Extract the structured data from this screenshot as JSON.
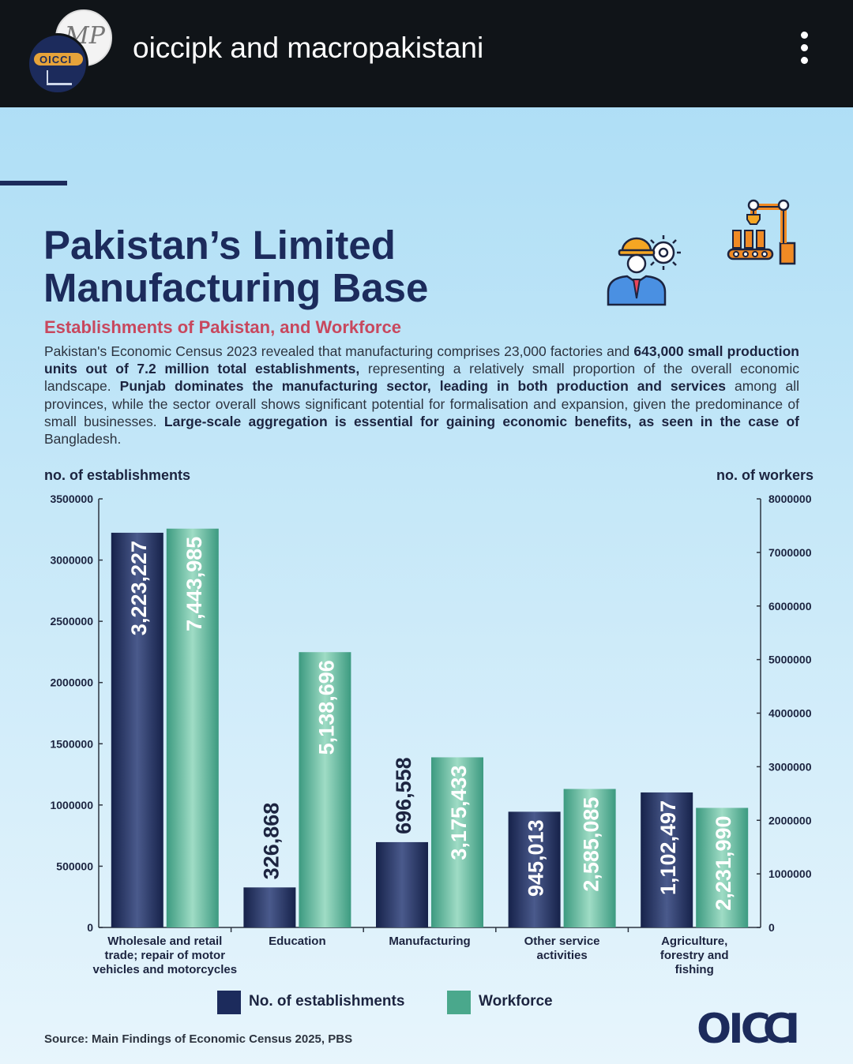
{
  "header": {
    "account_name": "oiccipk and macropakistani",
    "avatar_front_text": "OICCI",
    "avatar_back_text": "MP"
  },
  "post": {
    "title_line1": "Pakistan’s Limited",
    "title_line2": "Manufacturing Base",
    "subtitle": "Establishments of Pakistan, and Workforce",
    "body": [
      {
        "t": "Pakistan's Economic Census 2023 revealed that manufacturing comprises 23,000 factories and ",
        "b": false
      },
      {
        "t": "643,000 small production units out of 7.2 million total establishments,",
        "b": true
      },
      {
        "t": " representing a relatively small proportion of the overall economic landscape. ",
        "b": false
      },
      {
        "t": "Punjab dominates the manufacturing sector, leading in both production and services",
        "b": true
      },
      {
        "t": " among all provinces, while the sector overall shows significant potential for formalisation and expansion, given the predominance of small businesses. ",
        "b": false
      },
      {
        "t": "Large-scale aggregation is essential for gaining economic benefits, as seen in the case of",
        "b": true
      },
      {
        "t": " Bangladesh.",
        "b": false
      }
    ],
    "source": "Source: Main Findings of Economic Census 2025, PBS",
    "brand": "OICCI",
    "icons": [
      "worker-gear-icon",
      "robot-arm-icon"
    ]
  },
  "chart_data": {
    "type": "bar",
    "ylabel": "no. of establishments",
    "y2label": "no. of workers",
    "ylim": [
      0,
      3500000
    ],
    "y2lim": [
      0,
      8000000
    ],
    "yticks": [
      "0",
      "500000",
      "1000000",
      "1500000",
      "2000000",
      "2500000",
      "3000000",
      "3500000"
    ],
    "y2ticks": [
      "0",
      "1000000",
      "2000000",
      "3000000",
      "4000000",
      "5000000",
      "6000000",
      "7000000",
      "8000000"
    ],
    "categories": [
      [
        "Wholesale and retail",
        "trade; repair of motor",
        "vehicles and motorcycles"
      ],
      [
        "Education"
      ],
      [
        "Manufacturing"
      ],
      [
        "Other service",
        "activities"
      ],
      [
        "Agriculture,",
        "forestry and",
        "fishing"
      ]
    ],
    "series": [
      {
        "name": "No. of establishments",
        "axis": "left",
        "color": "#1c2b5c",
        "values": [
          3223227,
          326868,
          696558,
          945013,
          1102497
        ],
        "labels": [
          "3,223,227",
          "326,868",
          "696,558",
          "945,013",
          "1,102,497"
        ]
      },
      {
        "name": "Workforce",
        "axis": "right",
        "color": "#4aa88c",
        "values": [
          7443985,
          5138696,
          3175433,
          2585085,
          2231990
        ],
        "labels": [
          "7,443,985",
          "5,138,696",
          "3,175,433",
          "2,585,085",
          "2,231,990"
        ]
      }
    ],
    "legend": "bottom"
  }
}
